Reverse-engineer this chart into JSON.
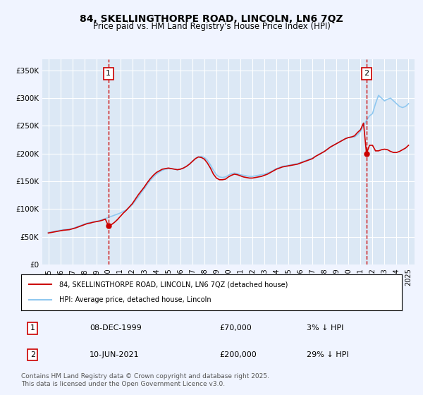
{
  "title": "84, SKELLINGTHORPE ROAD, LINCOLN, LN6 7QZ",
  "subtitle": "Price paid vs. HM Land Registry's House Price Index (HPI)",
  "background_color": "#f0f4ff",
  "plot_bg_color": "#dce8f5",
  "grid_color": "#ffffff",
  "hpi_color": "#90c8f0",
  "price_color": "#cc0000",
  "marker1_date_x": 2000.0,
  "marker1_label": "1",
  "marker2_date_x": 2021.5,
  "marker2_label": "2",
  "ylim_min": 0,
  "ylim_max": 370000,
  "ytick_values": [
    0,
    50000,
    100000,
    150000,
    200000,
    250000,
    300000,
    350000
  ],
  "xlim_min": 1994.5,
  "xlim_max": 2025.5,
  "legend_line1": "84, SKELLINGTHORPE ROAD, LINCOLN, LN6 7QZ (detached house)",
  "legend_line2": "HPI: Average price, detached house, Lincoln",
  "annotation1_date": "08-DEC-1999",
  "annotation1_price": "£70,000",
  "annotation1_hpi": "3% ↓ HPI",
  "annotation2_date": "10-JUN-2021",
  "annotation2_price": "£200,000",
  "annotation2_hpi": "29% ↓ HPI",
  "footnote": "Contains HM Land Registry data © Crown copyright and database right 2025.\nThis data is licensed under the Open Government Licence v3.0.",
  "hpi_data_x": [
    1995.0,
    1995.25,
    1995.5,
    1995.75,
    1996.0,
    1996.25,
    1996.5,
    1996.75,
    1997.0,
    1997.25,
    1997.5,
    1997.75,
    1998.0,
    1998.25,
    1998.5,
    1998.75,
    1999.0,
    1999.25,
    1999.5,
    1999.75,
    2000.0,
    2000.25,
    2000.5,
    2000.75,
    2001.0,
    2001.25,
    2001.5,
    2001.75,
    2002.0,
    2002.25,
    2002.5,
    2002.75,
    2003.0,
    2003.25,
    2003.5,
    2003.75,
    2004.0,
    2004.25,
    2004.5,
    2004.75,
    2005.0,
    2005.25,
    2005.5,
    2005.75,
    2006.0,
    2006.25,
    2006.5,
    2006.75,
    2007.0,
    2007.25,
    2007.5,
    2007.75,
    2008.0,
    2008.25,
    2008.5,
    2008.75,
    2009.0,
    2009.25,
    2009.5,
    2009.75,
    2010.0,
    2010.25,
    2010.5,
    2010.75,
    2011.0,
    2011.25,
    2011.5,
    2011.75,
    2012.0,
    2012.25,
    2012.5,
    2012.75,
    2013.0,
    2013.25,
    2013.5,
    2013.75,
    2014.0,
    2014.25,
    2014.5,
    2014.75,
    2015.0,
    2015.25,
    2015.5,
    2015.75,
    2016.0,
    2016.25,
    2016.5,
    2016.75,
    2017.0,
    2017.25,
    2017.5,
    2017.75,
    2018.0,
    2018.25,
    2018.5,
    2018.75,
    2019.0,
    2019.25,
    2019.5,
    2019.75,
    2020.0,
    2020.25,
    2020.5,
    2020.75,
    2021.0,
    2021.25,
    2021.5,
    2021.75,
    2022.0,
    2022.25,
    2022.5,
    2022.75,
    2023.0,
    2023.25,
    2023.5,
    2023.75,
    2024.0,
    2024.25,
    2024.5,
    2024.75,
    2025.0
  ],
  "hpi_data_y": [
    58000,
    59000,
    60000,
    61000,
    62000,
    63000,
    63500,
    64000,
    65000,
    67000,
    69000,
    71000,
    73000,
    75000,
    76000,
    77000,
    78000,
    79500,
    81000,
    83000,
    85000,
    87000,
    89000,
    91000,
    93000,
    96000,
    99000,
    103000,
    108000,
    115000,
    122000,
    130000,
    137000,
    145000,
    152000,
    158000,
    163000,
    167000,
    170000,
    172000,
    173000,
    173000,
    172000,
    171000,
    172000,
    174000,
    177000,
    181000,
    186000,
    191000,
    194000,
    195000,
    193000,
    188000,
    180000,
    170000,
    162000,
    158000,
    157000,
    158000,
    161000,
    164000,
    165000,
    164000,
    162000,
    161000,
    160000,
    159000,
    159000,
    160000,
    161000,
    162000,
    163000,
    165000,
    167000,
    170000,
    173000,
    175000,
    177000,
    178000,
    179000,
    180000,
    181000,
    182000,
    184000,
    186000,
    188000,
    190000,
    192000,
    195000,
    198000,
    201000,
    204000,
    208000,
    212000,
    215000,
    218000,
    221000,
    224000,
    227000,
    229000,
    230000,
    230000,
    234000,
    240000,
    250000,
    260000,
    268000,
    272000,
    290000,
    305000,
    300000,
    295000,
    298000,
    300000,
    295000,
    290000,
    285000,
    283000,
    285000,
    290000
  ],
  "price_data_x": [
    1995.0,
    1995.25,
    1995.5,
    1995.75,
    1996.0,
    1996.25,
    1996.5,
    1996.75,
    1997.0,
    1997.25,
    1997.5,
    1997.75,
    1998.0,
    1998.25,
    1998.5,
    1998.75,
    1999.0,
    1999.25,
    1999.5,
    1999.75,
    2000.0,
    2000.25,
    2000.5,
    2000.75,
    2001.0,
    2001.25,
    2001.5,
    2001.75,
    2002.0,
    2002.25,
    2002.5,
    2002.75,
    2003.0,
    2003.25,
    2003.5,
    2003.75,
    2004.0,
    2004.25,
    2004.5,
    2004.75,
    2005.0,
    2005.25,
    2005.5,
    2005.75,
    2006.0,
    2006.25,
    2006.5,
    2006.75,
    2007.0,
    2007.25,
    2007.5,
    2007.75,
    2008.0,
    2008.25,
    2008.5,
    2008.75,
    2009.0,
    2009.25,
    2009.5,
    2009.75,
    2010.0,
    2010.25,
    2010.5,
    2010.75,
    2011.0,
    2011.25,
    2011.5,
    2011.75,
    2012.0,
    2012.25,
    2012.5,
    2012.75,
    2013.0,
    2013.25,
    2013.5,
    2013.75,
    2014.0,
    2014.25,
    2014.5,
    2014.75,
    2015.0,
    2015.25,
    2015.5,
    2015.75,
    2016.0,
    2016.25,
    2016.5,
    2016.75,
    2017.0,
    2017.25,
    2017.5,
    2017.75,
    2018.0,
    2018.25,
    2018.5,
    2018.75,
    2019.0,
    2019.25,
    2019.5,
    2019.75,
    2020.0,
    2020.25,
    2020.5,
    2020.75,
    2021.0,
    2021.25,
    2021.5,
    2021.75,
    2022.0,
    2022.25,
    2022.5,
    2022.75,
    2023.0,
    2023.25,
    2023.5,
    2023.75,
    2024.0,
    2024.25,
    2024.5,
    2024.75,
    2025.0
  ],
  "price_data_y": [
    57000,
    58000,
    59000,
    60000,
    61000,
    62000,
    62500,
    63000,
    64500,
    66000,
    68000,
    70000,
    72000,
    74000,
    75000,
    76500,
    77500,
    78500,
    80000,
    82000,
    70000,
    72000,
    76000,
    81000,
    87000,
    93000,
    98000,
    104000,
    110000,
    118000,
    126000,
    133000,
    140000,
    148000,
    155000,
    161000,
    166000,
    169000,
    172000,
    173000,
    174000,
    173000,
    172000,
    171000,
    172000,
    174000,
    177000,
    181000,
    186000,
    191000,
    194000,
    193000,
    190000,
    183000,
    174000,
    163000,
    156000,
    153000,
    153000,
    154000,
    158000,
    161000,
    163000,
    162000,
    160000,
    158000,
    157000,
    156000,
    156000,
    157000,
    158000,
    159000,
    161000,
    163000,
    166000,
    169000,
    172000,
    174000,
    176000,
    177000,
    178000,
    179000,
    180000,
    181000,
    183000,
    185000,
    187000,
    189000,
    191000,
    195000,
    198000,
    201000,
    204000,
    208000,
    212000,
    215000,
    218000,
    221000,
    224000,
    227000,
    229000,
    230000,
    232000,
    238000,
    243000,
    255000,
    200000,
    215000,
    215000,
    205000,
    205000,
    207000,
    208000,
    207000,
    204000,
    202000,
    202000,
    204000,
    207000,
    210000,
    215000
  ]
}
